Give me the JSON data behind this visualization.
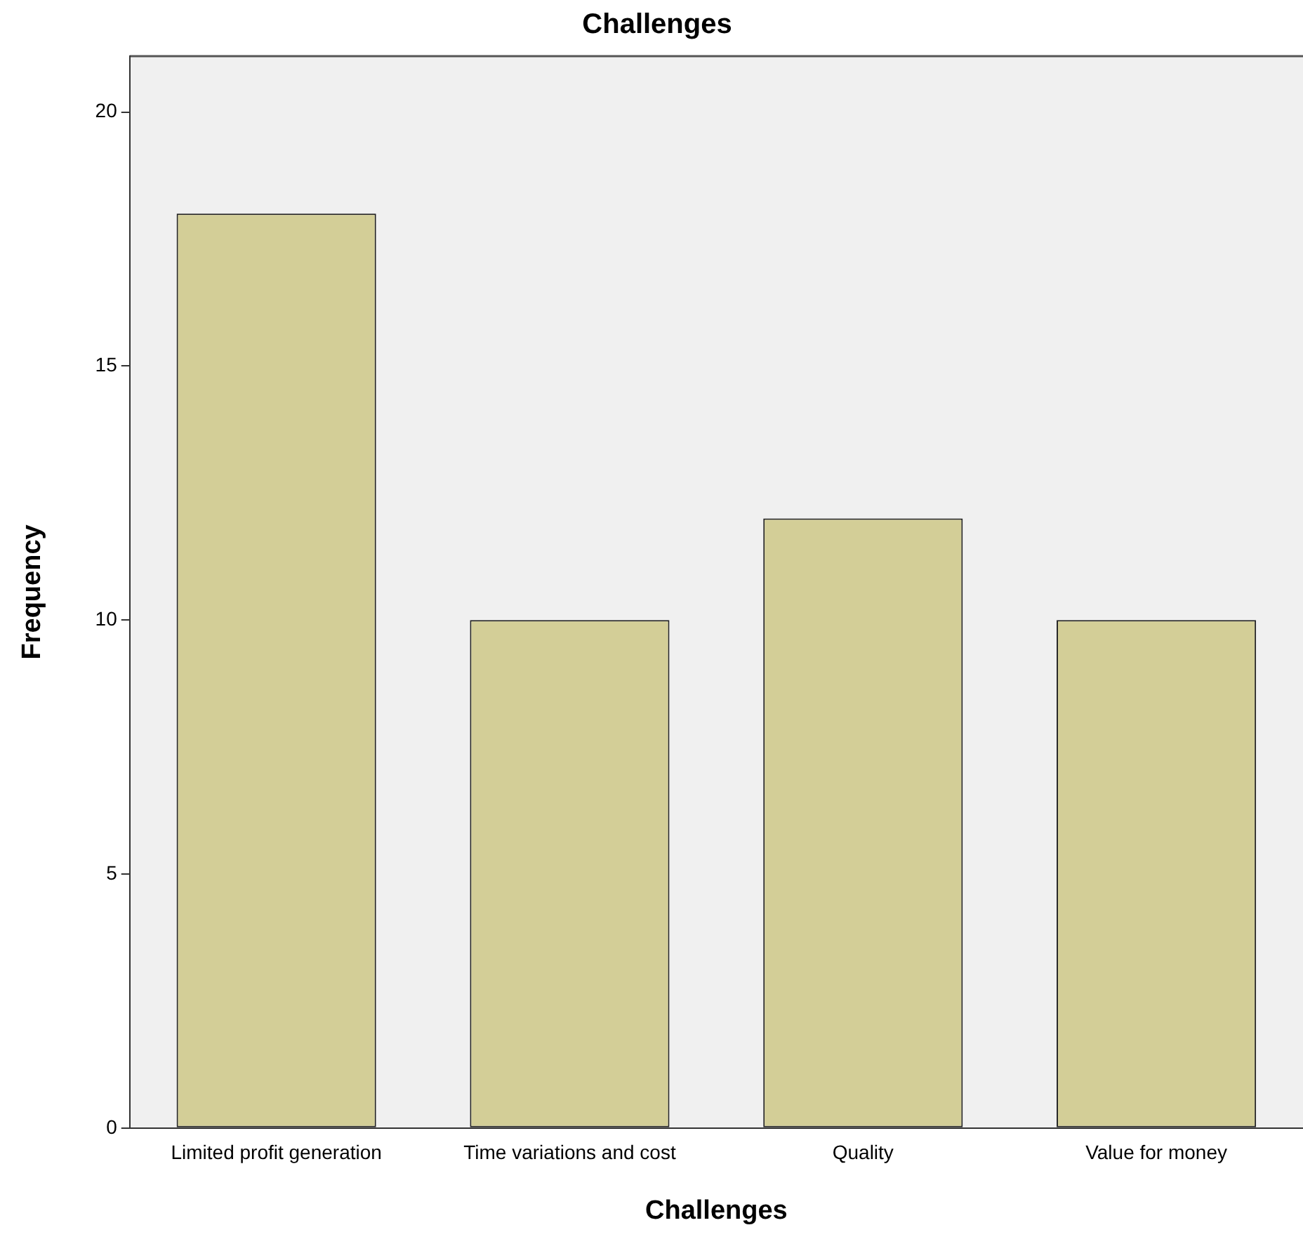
{
  "chart_data": {
    "type": "bar",
    "title": "Challenges",
    "xlabel": "Challenges",
    "ylabel": "Frequency",
    "categories": [
      "Limited profit generation",
      "Time variations and cost",
      "Quality",
      "Value for money"
    ],
    "values": [
      18,
      10,
      12,
      10
    ],
    "color": "#d3ce97",
    "ylim": [
      0,
      21.1
    ],
    "yticks": [
      0,
      5,
      10,
      15,
      20
    ],
    "grid": false,
    "legend": false
  }
}
